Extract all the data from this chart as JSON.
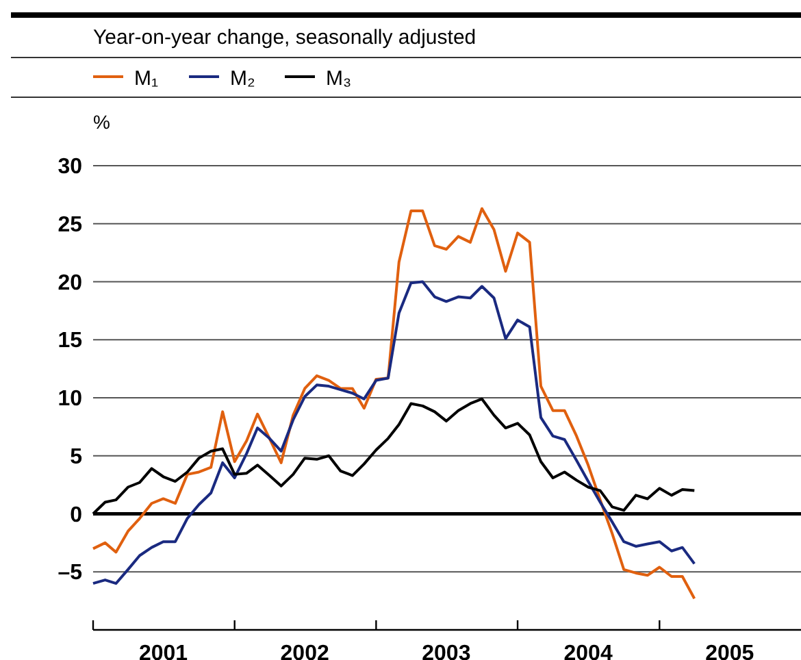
{
  "chart_data": {
    "type": "line",
    "subtitle": "Year-on-year change, seasonally adjusted",
    "ylabel": "%",
    "legend": "top",
    "grid": "y",
    "line_style": "solid",
    "marker": "none",
    "x": [
      "2001-01",
      "2001-02",
      "2001-03",
      "2001-04",
      "2001-05",
      "2001-06",
      "2001-07",
      "2001-08",
      "2001-09",
      "2001-10",
      "2001-11",
      "2001-12",
      "2002-01",
      "2002-02",
      "2002-03",
      "2002-04",
      "2002-05",
      "2002-06",
      "2002-07",
      "2002-08",
      "2002-09",
      "2002-10",
      "2002-11",
      "2002-12",
      "2003-01",
      "2003-02",
      "2003-03",
      "2003-04",
      "2003-05",
      "2003-06",
      "2003-07",
      "2003-08",
      "2003-09",
      "2003-10",
      "2003-11",
      "2003-12",
      "2004-01",
      "2004-02",
      "2004-03",
      "2004-04",
      "2004-05",
      "2004-06",
      "2004-07",
      "2004-08",
      "2004-09",
      "2004-10",
      "2004-11",
      "2004-12",
      "2005-01",
      "2005-02",
      "2005-03",
      "2005-04"
    ],
    "series": [
      {
        "name": "M₁",
        "color": "#e0600f",
        "values": [
          -3.0,
          -2.5,
          -3.3,
          -1.5,
          -0.4,
          0.9,
          1.3,
          0.9,
          3.4,
          3.6,
          4.0,
          8.8,
          4.5,
          6.3,
          8.6,
          6.5,
          4.4,
          8.5,
          10.8,
          11.9,
          11.5,
          10.8,
          10.8,
          9.1,
          11.6,
          11.7,
          21.7,
          26.1,
          26.1,
          23.1,
          22.8,
          23.9,
          23.4,
          26.3,
          24.5,
          20.9,
          24.2,
          23.4,
          11.0,
          8.9,
          8.9,
          6.7,
          4.2,
          1.2,
          -1.7,
          -4.8,
          -5.1,
          -5.3,
          -4.6,
          -5.4,
          -5.4,
          -7.3
        ]
      },
      {
        "name": "M₂",
        "color": "#1a2a80",
        "values": [
          -6.0,
          -5.7,
          -6.0,
          -4.8,
          -3.6,
          -2.9,
          -2.4,
          -2.4,
          -0.4,
          0.8,
          1.8,
          4.4,
          3.1,
          5.2,
          7.4,
          6.5,
          5.4,
          8.1,
          10.1,
          11.1,
          11.0,
          10.7,
          10.4,
          9.9,
          11.5,
          11.7,
          17.3,
          19.9,
          20.0,
          18.7,
          18.3,
          18.7,
          18.6,
          19.6,
          18.6,
          15.1,
          16.7,
          16.1,
          8.3,
          6.7,
          6.4,
          4.6,
          2.8,
          1.0,
          -0.7,
          -2.4,
          -2.8,
          -2.6,
          -2.4,
          -3.2,
          -2.9,
          -4.3
        ]
      },
      {
        "name": "M₃",
        "color": "#000000",
        "values": [
          0.0,
          1.0,
          1.2,
          2.3,
          2.7,
          3.9,
          3.2,
          2.8,
          3.6,
          4.8,
          5.4,
          5.6,
          3.4,
          3.5,
          4.2,
          3.3,
          2.4,
          3.4,
          4.8,
          4.7,
          5.0,
          3.7,
          3.3,
          4.3,
          5.5,
          6.5,
          7.7,
          9.5,
          9.3,
          8.8,
          8.0,
          8.9,
          9.5,
          9.9,
          8.5,
          7.4,
          7.8,
          6.8,
          4.5,
          3.1,
          3.6,
          2.9,
          2.3,
          2.0,
          0.6,
          0.3,
          1.6,
          1.3,
          2.2,
          1.6,
          2.1,
          2.0
        ]
      }
    ],
    "xlim": [
      "2001-01",
      "2006-01"
    ],
    "xticks": [
      {
        "value": "2001-01",
        "label": null
      },
      {
        "value": "2001-07",
        "label": "2001"
      },
      {
        "value": "2002-01",
        "label": null
      },
      {
        "value": "2002-07",
        "label": "2002"
      },
      {
        "value": "2003-01",
        "label": null
      },
      {
        "value": "2003-07",
        "label": "2003"
      },
      {
        "value": "2004-01",
        "label": null
      },
      {
        "value": "2004-07",
        "label": "2004"
      },
      {
        "value": "2005-01",
        "label": null
      },
      {
        "value": "2005-07",
        "label": "2005"
      }
    ],
    "ylim": [
      -10,
      30
    ],
    "yticks": [
      {
        "value": -5,
        "label": "–5"
      },
      0,
      5,
      10,
      15,
      20,
      25,
      30
    ]
  }
}
